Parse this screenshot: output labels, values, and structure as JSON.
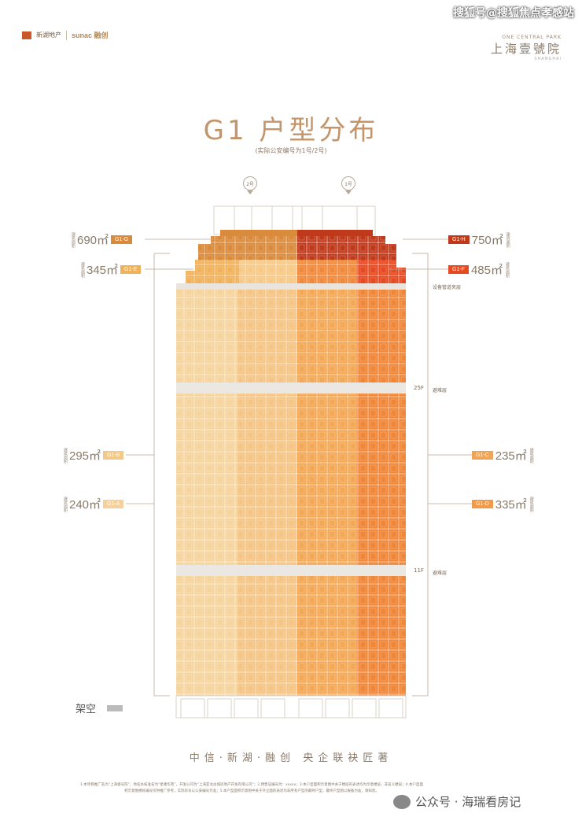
{
  "watermark": "搜狐号@搜狐焦点孝感站",
  "logos": {
    "xinhu": "新湖地产",
    "sunac": "sunac 融创"
  },
  "project": {
    "en": "ONE CENTRAL PARK",
    "cn": "上海壹號院",
    "sub": "SHANGHAI"
  },
  "title": "G1 户型分布",
  "subtitle": "(实际公安编号为1号/2号)",
  "pins": {
    "left": "2号",
    "right": "1号"
  },
  "left_labels": [
    {
      "area": "690㎡",
      "tag": "G1-G",
      "color": "#d98a3a",
      "small": "建筑面积"
    },
    {
      "area": "345㎡",
      "tag": "G1-E",
      "color": "#f0b25a",
      "small": "建筑面积"
    },
    {
      "area": "295㎡",
      "tag": "G1-B",
      "color": "#f3c98a",
      "small": "建筑面积"
    },
    {
      "area": "240㎡",
      "tag": "G1-A",
      "color": "#f5d09a",
      "small": "建筑面积"
    }
  ],
  "right_labels": [
    {
      "area": "750㎡",
      "tag": "G1-H",
      "color": "#c0391b",
      "small": "建筑面积"
    },
    {
      "area": "485㎡",
      "tag": "G1-F",
      "color": "#e54a20",
      "small": "建筑面积"
    },
    {
      "area": "235㎡",
      "tag": "G1-C",
      "color": "#f0a45a",
      "small": "建筑面积"
    },
    {
      "area": "335㎡",
      "tag": "G1-D",
      "color": "#f29a4a",
      "small": "建筑面积"
    }
  ],
  "floors": {
    "f25": "25F",
    "f11": "11F",
    "equipment": "设备管道夹层",
    "refuge": "避难层"
  },
  "stilt": "架空",
  "slogan": "中信·新湖·融创 央企联袂匠著",
  "disclaimer": "1.本项目推广名为“上海壹号院”，地名办核准名为“星塘华苑”，开发公司为“上海亚龙古城房地产开发有限公司”；2.预售证编号为：xxxxx；3.本户型面积示意图中关于楼层的表述均为示意楼层，非名义楼层；4.本户型面积示意图楼栋编号仅供推广参考，实际房号以公安编号为准；5.本户型面积示意图中关于外立面的表述均非所有户型的最终户型，最终户型图以报备为准，请知悉。",
  "wechat": "公众号 · 海瑞看房记"
}
